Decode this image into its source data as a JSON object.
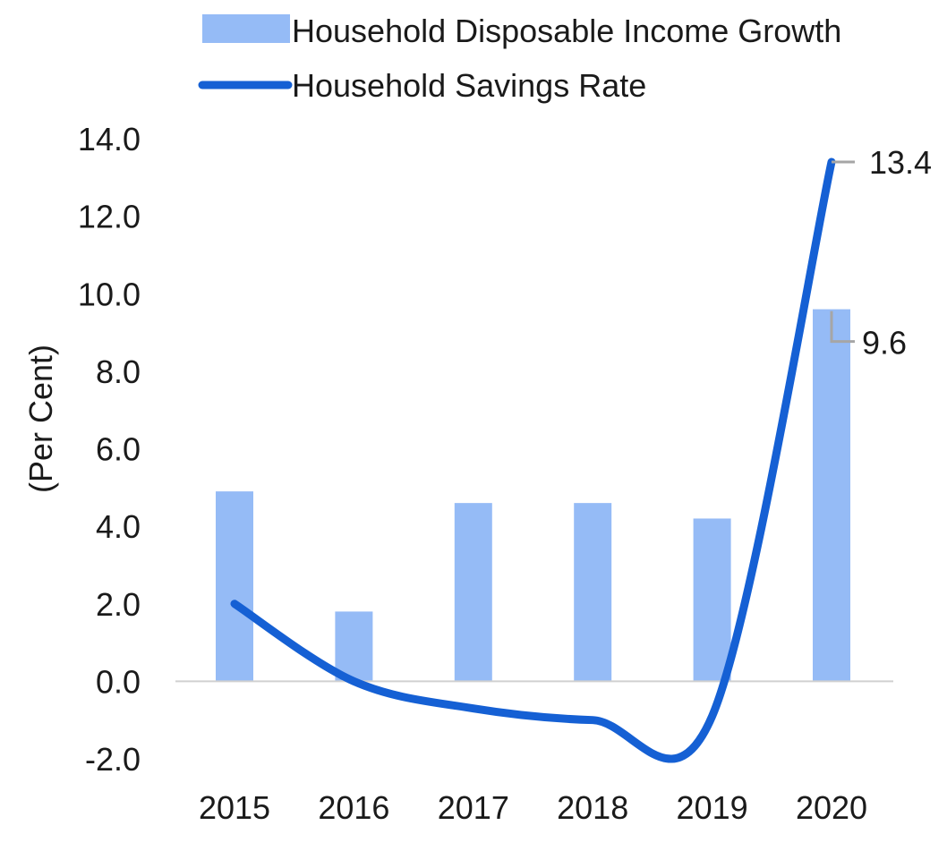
{
  "chart_data": {
    "type": "bar+line",
    "title": "",
    "xlabel": "",
    "ylabel": "(Per Cent)",
    "categories": [
      "2015",
      "2016",
      "2017",
      "2018",
      "2019",
      "2020"
    ],
    "ylim": [
      -2.0,
      14.0
    ],
    "yticks": [
      "-2.0",
      "0.0",
      "2.0",
      "4.0",
      "6.0",
      "8.0",
      "10.0",
      "12.0",
      "14.0"
    ],
    "grid": false,
    "legend_position": "top",
    "series": [
      {
        "name": "Household Disposable Income Growth",
        "type": "bar",
        "color": "#95bbf6",
        "values": [
          4.9,
          1.8,
          4.6,
          4.6,
          4.2,
          9.6
        ]
      },
      {
        "name": "Household Savings Rate",
        "type": "line",
        "color": "#1560d4",
        "values": [
          2.0,
          0.0,
          -0.7,
          -1.0,
          -0.9,
          13.4
        ]
      }
    ],
    "annotations": [
      {
        "series": "Household Savings Rate",
        "category": "2020",
        "text": "13.4"
      },
      {
        "series": "Household Disposable Income Growth",
        "category": "2020",
        "text": "9.6"
      }
    ]
  }
}
